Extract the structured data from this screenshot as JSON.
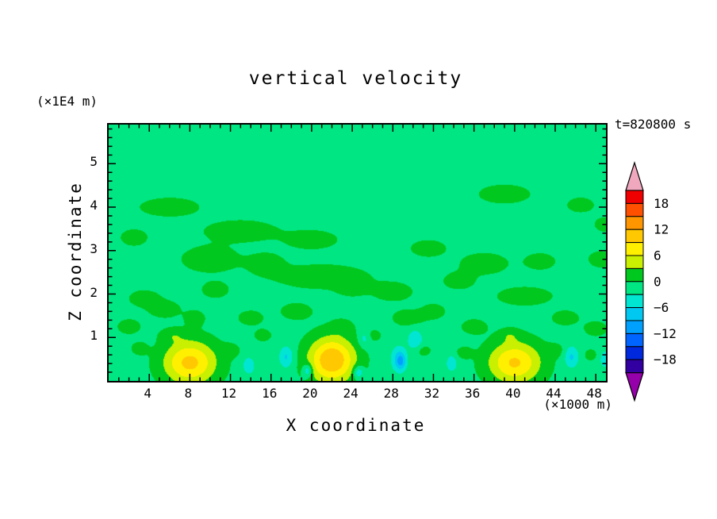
{
  "chart_data": {
    "type": "heatmap",
    "title": "vertical velocity",
    "time_label": "t=820800 s",
    "x_axis": {
      "label": "X coordinate",
      "unit": "(×1000 m)",
      "range": [
        0,
        49
      ],
      "major_ticks": [
        4,
        8,
        12,
        16,
        20,
        24,
        28,
        32,
        36,
        40,
        44,
        48
      ],
      "minor_step": 1
    },
    "z_axis": {
      "label": "Z coordinate",
      "unit": "(×1E4 m)",
      "range": [
        0,
        5.9
      ],
      "major_ticks": [
        1,
        2,
        3,
        4,
        5
      ],
      "minor_step": 0.2
    },
    "contour_interval": 3,
    "levels": [
      -21,
      -18,
      -15,
      -12,
      -9,
      -6,
      -3,
      0,
      3,
      6,
      9,
      12,
      15,
      18,
      21
    ],
    "band_colors": [
      "#3200a0",
      "#0028dc",
      "#0064ff",
      "#00a0ff",
      "#00c8f0",
      "#00e6d2",
      "#00e682",
      "#00c81e",
      "#c8f000",
      "#fff000",
      "#ffc800",
      "#ff9600",
      "#ff5000",
      "#f00000"
    ],
    "under_color": "#9600aa",
    "over_color": "#f0a8be",
    "colorbar_labels": [
      18,
      12,
      6,
      0,
      -6,
      -12,
      -18
    ],
    "background_value": -1,
    "feature_format": [
      "x",
      "z",
      "rx",
      "rz",
      "amplitude"
    ],
    "features": [
      [
        6,
        4.0,
        3.0,
        0.22,
        2.6
      ],
      [
        39,
        4.3,
        2.6,
        0.22,
        2.6
      ],
      [
        46.5,
        4.05,
        1.4,
        0.18,
        2.4
      ],
      [
        49,
        3.6,
        1.2,
        0.18,
        2.4
      ],
      [
        2.5,
        3.3,
        1.4,
        0.2,
        2.4
      ],
      [
        13,
        3.45,
        3.6,
        0.25,
        2.7
      ],
      [
        20,
        3.25,
        2.6,
        0.22,
        2.6
      ],
      [
        31.5,
        3.05,
        1.8,
        0.2,
        2.5
      ],
      [
        10,
        2.8,
        2.8,
        0.3,
        2.8
      ],
      [
        15.5,
        2.7,
        1.8,
        0.25,
        2.5
      ],
      [
        37,
        2.7,
        2.4,
        0.25,
        2.6
      ],
      [
        42.5,
        2.75,
        1.6,
        0.2,
        2.4
      ],
      [
        48.5,
        2.8,
        1.3,
        0.2,
        2.4
      ],
      [
        21,
        2.4,
        4.5,
        0.28,
        2.8
      ],
      [
        34.5,
        2.3,
        1.6,
        0.2,
        2.4
      ],
      [
        24,
        2.15,
        1.5,
        0.2,
        2.4
      ],
      [
        28,
        2.05,
        2.0,
        0.22,
        2.5
      ],
      [
        10.5,
        2.1,
        1.4,
        0.2,
        2.4
      ],
      [
        41,
        1.95,
        2.8,
        0.22,
        2.6
      ],
      [
        3.5,
        1.9,
        1.6,
        0.2,
        2.4
      ],
      [
        5.5,
        1.65,
        1.6,
        0.2,
        2.5
      ],
      [
        18.5,
        1.6,
        1.6,
        0.2,
        2.5
      ],
      [
        32,
        1.6,
        1.2,
        0.18,
        2.4
      ],
      [
        8.5,
        1.45,
        1.0,
        0.18,
        2.4
      ],
      [
        14,
        1.45,
        1.3,
        0.18,
        2.4
      ],
      [
        29.5,
        1.45,
        1.6,
        0.2,
        2.5
      ],
      [
        45,
        1.45,
        1.4,
        0.18,
        2.4
      ],
      [
        2,
        1.25,
        1.2,
        0.18,
        2.4
      ],
      [
        23,
        1.25,
        1.0,
        0.16,
        2.4
      ],
      [
        36,
        1.25,
        1.3,
        0.18,
        2.4
      ],
      [
        48,
        1.2,
        1.2,
        0.18,
        2.4
      ],
      [
        6.3,
        1.05,
        1.2,
        0.16,
        2.4
      ],
      [
        15.2,
        1.05,
        0.9,
        0.15,
        2.3
      ],
      [
        25.8,
        1.05,
        1.1,
        0.15,
        2.3
      ],
      [
        39.5,
        1.05,
        1.0,
        0.15,
        2.3
      ],
      [
        3,
        0.75,
        0.8,
        0.15,
        2.3
      ],
      [
        12,
        0.7,
        0.9,
        0.15,
        2.3
      ],
      [
        31,
        0.7,
        0.8,
        0.14,
        2.2
      ],
      [
        35,
        0.65,
        0.8,
        0.14,
        2.2
      ],
      [
        44,
        0.7,
        0.9,
        0.15,
        2.3
      ],
      [
        47.5,
        0.6,
        0.7,
        0.14,
        2.2
      ],
      [
        8,
        0.42,
        2.6,
        0.5,
        11
      ],
      [
        22,
        0.48,
        2.3,
        0.52,
        13
      ],
      [
        40,
        0.42,
        2.6,
        0.48,
        10.5
      ],
      [
        17.5,
        0.55,
        0.7,
        0.25,
        -5.5
      ],
      [
        28.6,
        0.5,
        0.8,
        0.3,
        -5.5
      ],
      [
        28.8,
        0.45,
        0.45,
        0.18,
        -5
      ],
      [
        30.2,
        0.95,
        0.7,
        0.22,
        -5
      ],
      [
        25.2,
        1.0,
        0.6,
        0.2,
        -4.5
      ],
      [
        45.6,
        0.55,
        0.7,
        0.25,
        -5.5
      ],
      [
        13.8,
        0.35,
        0.6,
        0.2,
        -4.5
      ],
      [
        33.8,
        0.4,
        0.5,
        0.18,
        -5
      ],
      [
        49,
        0.5,
        0.6,
        0.2,
        -4.5
      ],
      [
        24.6,
        0.2,
        0.5,
        0.15,
        -6
      ],
      [
        19.6,
        0.24,
        0.45,
        0.15,
        -6.5
      ]
    ]
  }
}
